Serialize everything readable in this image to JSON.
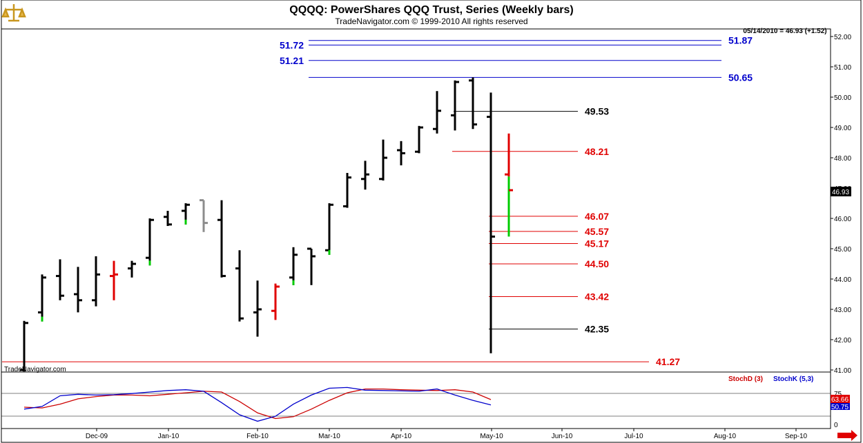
{
  "header": {
    "title": "QQQQ:  PowerShares QQQ Trust, Series  (Weekly bars)",
    "subtitle": "TradeNavigator.com © 1999-2010 All rights reserved",
    "quote": "05/14/2010 = 46.93 (+1.52)",
    "watermark": "TradeNavigator.com"
  },
  "colors": {
    "bar_default": "#000000",
    "bar_up_close": "#00cc00",
    "bar_down": "#e00000",
    "bar_gray": "#8c8c8c",
    "level_blue": "#0000cc",
    "level_red": "#e00000",
    "level_black": "#000000",
    "stochD": "#cc0000",
    "stochK": "#0000cc"
  },
  "icons": {
    "logo": "gold-scale-logo-icon",
    "scroll": "red-right-arrow-icon"
  },
  "chart_data": [
    {
      "type": "ohlc",
      "title": "QQQQ:  PowerShares QQQ Trust, Series  (Weekly bars)",
      "y_ticks": [
        "41.00",
        "42.00",
        "43.00",
        "44.00",
        "45.00",
        "46.00",
        "47.00",
        "48.00",
        "49.00",
        "50.00",
        "51.00",
        "52.00"
      ],
      "ylim": [
        41.0,
        52.1
      ],
      "x_ticks": [
        "Dec-09",
        "Jan-10",
        "Feb-10",
        "Mar-10",
        "Apr-10",
        "May-10",
        "Jun-10",
        "Jul-10",
        "Aug-10",
        "Sep-10"
      ],
      "bars": [
        {
          "o": 41.0,
          "h": 42.62,
          "l": 40.95,
          "c": 42.55,
          "color": "black"
        },
        {
          "o": 42.9,
          "h": 44.15,
          "l": 42.6,
          "c": 44.05,
          "color": "black",
          "c_color": "green"
        },
        {
          "o": 44.1,
          "h": 44.65,
          "l": 43.3,
          "c": 43.45,
          "color": "black"
        },
        {
          "o": 43.5,
          "h": 44.4,
          "l": 42.9,
          "c": 43.3,
          "color": "black"
        },
        {
          "o": 43.3,
          "h": 44.75,
          "l": 43.1,
          "c": 44.15,
          "color": "black"
        },
        {
          "o": 44.1,
          "h": 44.6,
          "l": 43.3,
          "c": 44.15,
          "color": "red"
        },
        {
          "o": 44.35,
          "h": 44.6,
          "l": 44.05,
          "c": 44.5,
          "color": "black"
        },
        {
          "o": 44.7,
          "h": 46.0,
          "l": 44.45,
          "c": 45.95,
          "color": "black",
          "c_color": "green"
        },
        {
          "o": 46.05,
          "h": 46.25,
          "l": 45.75,
          "c": 45.8,
          "color": "black"
        },
        {
          "o": 46.25,
          "h": 46.5,
          "l": 45.8,
          "c": 46.45,
          "color": "black",
          "c_color": "green"
        },
        {
          "o": 46.6,
          "h": 46.6,
          "l": 45.55,
          "c": 45.85,
          "color": "gray"
        },
        {
          "o": 45.95,
          "h": 46.6,
          "l": 44.05,
          "c": 44.1,
          "color": "black"
        },
        {
          "o": 44.35,
          "h": 44.95,
          "l": 42.6,
          "c": 42.7,
          "color": "black"
        },
        {
          "o": 42.9,
          "h": 43.95,
          "l": 42.1,
          "c": 43.0,
          "color": "black"
        },
        {
          "o": 42.95,
          "h": 43.85,
          "l": 42.65,
          "c": 43.75,
          "color": "red"
        },
        {
          "o": 44.05,
          "h": 45.05,
          "l": 43.8,
          "c": 44.8,
          "color": "black",
          "c_color": "green"
        },
        {
          "o": 45.0,
          "h": 45.0,
          "l": 43.8,
          "c": 44.75,
          "color": "black"
        },
        {
          "o": 44.95,
          "h": 46.5,
          "l": 44.8,
          "c": 46.45,
          "color": "black",
          "c_color": "green"
        },
        {
          "o": 46.4,
          "h": 47.5,
          "l": 46.35,
          "c": 47.35,
          "color": "black"
        },
        {
          "o": 47.3,
          "h": 47.9,
          "l": 46.95,
          "c": 47.45,
          "color": "black"
        },
        {
          "o": 47.3,
          "h": 48.6,
          "l": 47.25,
          "c": 48.0,
          "color": "black"
        },
        {
          "o": 48.25,
          "h": 48.55,
          "l": 47.75,
          "c": 48.15,
          "color": "black"
        },
        {
          "o": 48.2,
          "h": 49.05,
          "l": 48.15,
          "c": 49.0,
          "color": "black"
        },
        {
          "o": 48.95,
          "h": 50.2,
          "l": 48.8,
          "c": 49.55,
          "color": "black"
        },
        {
          "o": 49.4,
          "h": 50.55,
          "l": 48.9,
          "c": 50.5,
          "color": "black"
        },
        {
          "o": 50.55,
          "h": 50.65,
          "l": 48.95,
          "c": 49.1,
          "color": "black"
        },
        {
          "o": 49.35,
          "h": 50.15,
          "l": 41.55,
          "c": 45.4,
          "color": "black"
        },
        {
          "o": 47.45,
          "h": 48.8,
          "l": 45.4,
          "c": 46.93,
          "color": "red",
          "low_color": "green"
        }
      ],
      "levels": [
        {
          "value": 51.87,
          "label": "51.87",
          "color": "blue"
        },
        {
          "value": 51.72,
          "label": "51.72",
          "color": "blue",
          "label_side": "left"
        },
        {
          "value": 51.21,
          "label": "51.21",
          "color": "blue",
          "label_side": "left"
        },
        {
          "value": 50.65,
          "label": "50.65",
          "color": "blue"
        },
        {
          "value": 49.53,
          "label": "49.53",
          "color": "black"
        },
        {
          "value": 48.21,
          "label": "48.21",
          "color": "red"
        },
        {
          "value": 46.07,
          "label": "46.07",
          "color": "red"
        },
        {
          "value": 45.57,
          "label": "45.57",
          "color": "red"
        },
        {
          "value": 45.17,
          "label": "45.17",
          "color": "red"
        },
        {
          "value": 44.5,
          "label": "44.50",
          "color": "red"
        },
        {
          "value": 43.42,
          "label": "43.42",
          "color": "red"
        },
        {
          "value": 42.35,
          "label": "42.35",
          "color": "black"
        },
        {
          "value": 41.27,
          "label": "41.27",
          "color": "red"
        }
      ],
      "last_price_label": "46.93"
    },
    {
      "type": "line",
      "legend": [
        "StochD (3)",
        "StochK (5,3)"
      ],
      "y_ticks": [
        "0",
        "75"
      ],
      "ylim": [
        0,
        100
      ],
      "series": [
        {
          "name": "StochD (3)",
          "values": [
            40,
            38,
            48,
            62,
            68,
            72,
            72,
            70,
            74,
            78,
            82,
            80,
            55,
            25,
            10,
            15,
            35,
            58,
            78,
            88,
            88,
            86,
            85,
            84,
            86,
            80,
            60
          ]
        },
        {
          "name": "StochK (5,3)",
          "values": [
            35,
            42,
            70,
            74,
            72,
            73,
            76,
            80,
            84,
            86,
            82,
            52,
            20,
            3,
            16,
            48,
            72,
            90,
            92,
            85,
            84,
            83,
            82,
            88,
            72,
            58,
            46
          ]
        }
      ],
      "end_labels": [
        "63.66",
        "50.75"
      ]
    }
  ]
}
